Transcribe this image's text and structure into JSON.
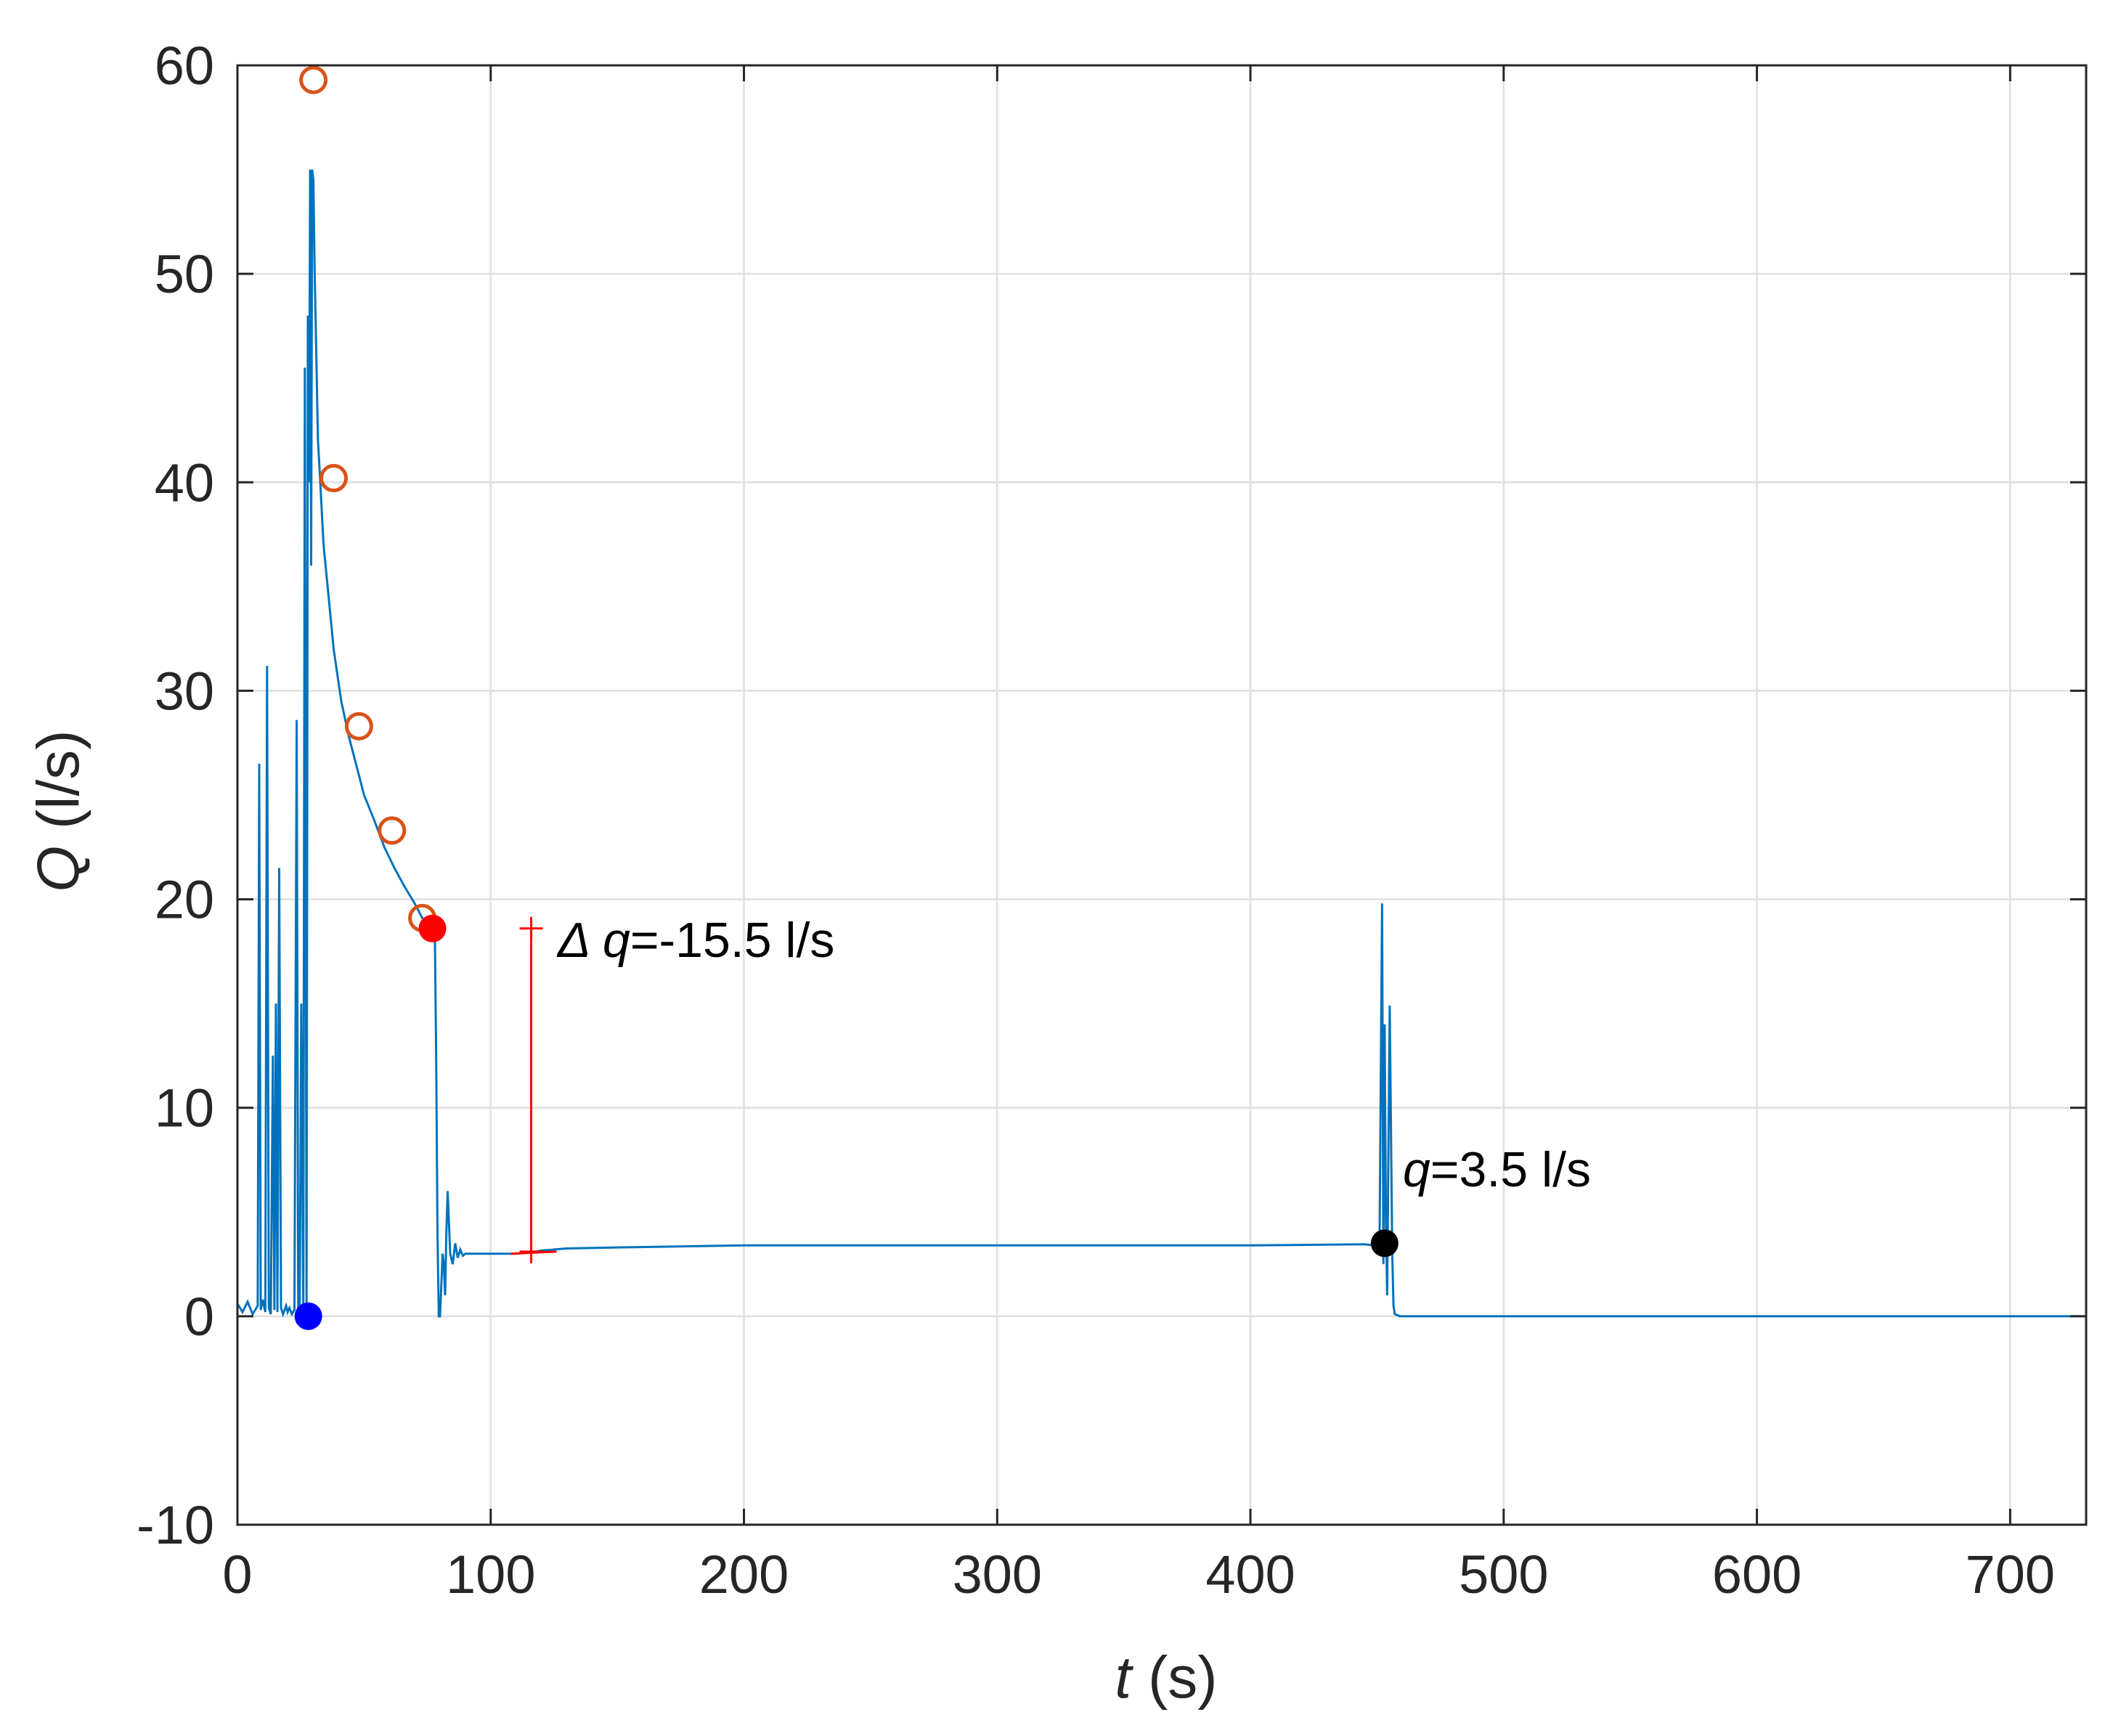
{
  "chart_data": {
    "type": "line",
    "title": "",
    "xlabel": {
      "var": "t",
      "unit": " (s)"
    },
    "ylabel": {
      "var": "Q",
      "unit": " (l/s)"
    },
    "xlim": [
      0,
      730
    ],
    "ylim": [
      -10,
      60
    ],
    "xticks": [
      0,
      100,
      200,
      300,
      400,
      500,
      600,
      700
    ],
    "yticks": [
      -10,
      0,
      10,
      20,
      30,
      40,
      50,
      60
    ],
    "xtick_labels": [
      "0",
      "100",
      "200",
      "300",
      "400",
      "500",
      "600",
      "700"
    ],
    "ytick_labels": [
      "-10",
      "0",
      "10",
      "20",
      "30",
      "40",
      "50",
      "60"
    ],
    "grid": true,
    "colors": {
      "line": "#0072BD",
      "open_markers": "#D95319",
      "red": "#FF0000",
      "blue": "#0000FF",
      "black": "#000000",
      "grid": "#DFDFDF",
      "axes": "#262626"
    },
    "series": [
      {
        "kind": "line",
        "x": [
          0,
          2,
          4,
          6,
          8,
          8.6,
          9.2,
          10,
          11,
          11.7,
          12.4,
          13.2,
          14,
          14.6,
          15.2,
          15.8,
          16.5,
          17.2,
          18,
          18.6,
          19.2,
          19.8,
          20.5,
          21.5,
          22.5,
          23.4,
          24,
          24.6,
          25.2,
          26,
          26.6,
          27.3,
          27.8,
          28.3,
          28.7,
          29.1,
          29.5,
          30,
          30.5,
          31,
          31.8,
          32.5,
          34,
          36,
          38,
          41,
          44,
          47,
          50,
          54,
          58,
          62,
          66,
          70,
          73,
          75,
          77,
          78,
          78.5,
          79,
          79.5,
          80,
          80.5,
          81,
          81.5,
          82,
          82.5,
          83,
          84,
          85,
          86,
          87,
          88,
          89,
          90,
          92,
          95,
          100,
          110,
          115,
          120,
          130,
          150,
          200,
          250,
          300,
          350,
          400,
          445,
          449,
          451,
          452,
          452.5,
          453,
          453.5,
          454,
          455,
          456,
          456.5,
          457,
          458,
          459,
          460,
          480,
          550,
          650,
          730
        ],
        "y": [
          0.6,
          0.2,
          0.7,
          0.1,
          0.5,
          26.5,
          0.3,
          0.8,
          0.2,
          31.2,
          0.4,
          0.1,
          12.5,
          0.3,
          15.0,
          0.2,
          21.5,
          0.4,
          0.1,
          0.3,
          0.5,
          0.2,
          0.4,
          0.1,
          0.3,
          28.6,
          0.2,
          0.4,
          15.0,
          0.3,
          45.5,
          0.5,
          48.0,
          40.0,
          55.0,
          36.0,
          55.0,
          54.5,
          50.0,
          47.0,
          42.0,
          40.5,
          37.0,
          34.5,
          32.0,
          29.5,
          27.8,
          26.4,
          25.0,
          23.8,
          22.5,
          21.5,
          20.6,
          19.8,
          19.1,
          18.8,
          18.4,
          18.0,
          12.0,
          4.0,
          0.0,
          0.0,
          1.5,
          3.0,
          2.5,
          1.0,
          4.0,
          6.0,
          3.0,
          2.5,
          3.5,
          2.8,
          3.2,
          2.9,
          3.0,
          3.0,
          3.0,
          3.0,
          3.0,
          3.05,
          3.15,
          3.25,
          3.3,
          3.4,
          3.4,
          3.4,
          3.4,
          3.4,
          3.45,
          3.4,
          3.5,
          19.8,
          2.5,
          14.0,
          4.5,
          1.0,
          14.9,
          3.0,
          0.5,
          0.1,
          0.05,
          0.0,
          0.0,
          0.0,
          0.0,
          0.0,
          0.0
        ]
      },
      {
        "kind": "open_markers",
        "points": [
          [
            30,
            59.3
          ],
          [
            38,
            40.2
          ],
          [
            48,
            28.3
          ],
          [
            61,
            23.3
          ],
          [
            73,
            19.1
          ]
        ]
      },
      {
        "kind": "red_segment",
        "x": [
          108,
          126
        ],
        "y": [
          3.0,
          3.1
        ]
      }
    ],
    "markers": {
      "blue_dot": [
        28,
        0
      ],
      "red_dot": [
        77,
        18.6
      ],
      "black_dot": [
        453,
        3.5
      ]
    },
    "errorbar": {
      "x": 116,
      "y_top": 18.6,
      "y_bottom": 3.1
    },
    "annotations": [
      {
        "id": "delta",
        "prefix": "Δ ",
        "var": "q",
        "suffix": "=-15.5 l/s"
      },
      {
        "id": "q",
        "prefix": "",
        "var": "q",
        "suffix": "=3.5 l/s"
      }
    ]
  }
}
